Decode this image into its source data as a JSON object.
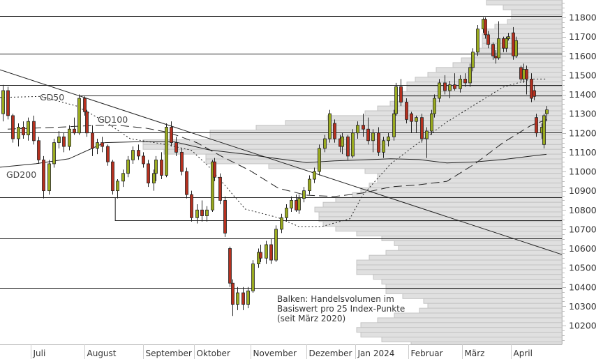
{
  "chart_data": {
    "type": "candlestick",
    "y_axis": {
      "position": "right",
      "range": [
        10100,
        11890
      ],
      "ticks": [
        10200,
        10300,
        10400,
        10500,
        10600,
        10700,
        10800,
        10900,
        11000,
        11100,
        11200,
        11300,
        11400,
        11500,
        11600,
        11700,
        11800
      ],
      "minor_step": 25
    },
    "x_axis": {
      "unit": "trading-day index",
      "range": [
        0,
        220
      ],
      "months": [
        {
          "label": "Juli",
          "day": 12
        },
        {
          "label": "August",
          "day": 33
        },
        {
          "label": "September",
          "day": 56
        },
        {
          "label": "Oktober",
          "day": 76
        },
        {
          "label": "November",
          "day": 98
        },
        {
          "label": "Dezember",
          "day": 120
        },
        {
          "label": "Jan 2024",
          "day": 139
        },
        {
          "label": "Februar",
          "day": 160
        },
        {
          "label": "März",
          "day": 181
        },
        {
          "label": "April",
          "day": 200
        }
      ]
    },
    "colors": {
      "up": "#9aab1f",
      "down": "#b5301f",
      "volume_fill": "#e0e0e0",
      "volume_stroke": "#c4c4c4",
      "line": "#222222"
    },
    "candles_fields": [
      "day",
      "open",
      "high",
      "low",
      "close"
    ],
    "candles": [
      [
        1,
        11300,
        11450,
        11260,
        11420
      ],
      [
        3,
        11420,
        11440,
        11270,
        11290
      ],
      [
        5,
        11290,
        11300,
        11150,
        11170
      ],
      [
        7,
        11170,
        11250,
        11130,
        11230
      ],
      [
        9,
        11230,
        11260,
        11170,
        11190
      ],
      [
        11,
        11190,
        11280,
        11160,
        11260
      ],
      [
        13,
        11260,
        11290,
        11140,
        11160
      ],
      [
        15,
        11160,
        11180,
        11040,
        11060
      ],
      [
        17,
        11060,
        11080,
        10860,
        10900
      ],
      [
        19,
        10900,
        11060,
        10880,
        11040
      ],
      [
        21,
        11040,
        11170,
        11020,
        11150
      ],
      [
        23,
        11150,
        11210,
        11120,
        11180
      ],
      [
        25,
        11180,
        11200,
        11100,
        11130
      ],
      [
        27,
        11130,
        11240,
        11110,
        11220
      ],
      [
        29,
        11220,
        11280,
        11190,
        11200
      ],
      [
        31,
        11200,
        11400,
        11190,
        11380
      ],
      [
        33,
        11380,
        11390,
        11290,
        11310
      ],
      [
        34,
        11310,
        11320,
        11180,
        11200
      ],
      [
        36,
        11200,
        11240,
        11080,
        11120
      ],
      [
        38,
        11120,
        11170,
        11090,
        11150
      ],
      [
        40,
        11150,
        11180,
        11100,
        11130
      ],
      [
        42,
        11130,
        11140,
        11030,
        11050
      ],
      [
        44,
        11050,
        11060,
        10880,
        10900
      ],
      [
        46,
        10900,
        10960,
        10860,
        10950
      ],
      [
        48,
        10950,
        11010,
        10920,
        10990
      ],
      [
        50,
        10990,
        11080,
        10970,
        11060
      ],
      [
        52,
        11060,
        11130,
        11040,
        11110
      ],
      [
        54,
        11110,
        11140,
        11060,
        11080
      ],
      [
        56,
        11080,
        11100,
        11020,
        11040
      ],
      [
        58,
        11040,
        11060,
        10920,
        10940
      ],
      [
        60,
        10940,
        11010,
        10900,
        10990
      ],
      [
        61,
        10990,
        11080,
        10950,
        11060
      ],
      [
        63,
        11060,
        11100,
        10960,
        10980
      ],
      [
        65,
        10980,
        11250,
        10970,
        11230
      ],
      [
        67,
        11230,
        11260,
        11130,
        11150
      ],
      [
        69,
        11150,
        11180,
        11080,
        11100
      ],
      [
        71,
        11100,
        11120,
        10980,
        11000
      ],
      [
        73,
        11000,
        11020,
        10860,
        10880
      ],
      [
        75,
        10880,
        10900,
        10740,
        10760
      ],
      [
        77,
        10760,
        10830,
        10730,
        10800
      ],
      [
        79,
        10800,
        10850,
        10740,
        10770
      ],
      [
        81,
        10770,
        10820,
        10740,
        10800
      ],
      [
        83,
        10800,
        11060,
        10790,
        11050
      ],
      [
        84,
        11050,
        11070,
        10950,
        10970
      ],
      [
        86,
        10970,
        10990,
        10830,
        10850
      ],
      [
        88,
        10850,
        10870,
        10660,
        10680
      ],
      [
        90,
        10600,
        10610,
        10400,
        10420
      ],
      [
        91,
        10420,
        10440,
        10250,
        10310
      ],
      [
        93,
        10310,
        10400,
        10280,
        10370
      ],
      [
        95,
        10370,
        10400,
        10280,
        10310
      ],
      [
        97,
        10310,
        10400,
        10290,
        10380
      ],
      [
        99,
        10380,
        10540,
        10370,
        10520
      ],
      [
        101,
        10520,
        10600,
        10500,
        10580
      ],
      [
        102,
        10580,
        10620,
        10530,
        10550
      ],
      [
        104,
        10550,
        10640,
        10520,
        10620
      ],
      [
        106,
        10620,
        10650,
        10520,
        10540
      ],
      [
        108,
        10540,
        10720,
        10530,
        10700
      ],
      [
        110,
        10700,
        10780,
        10680,
        10760
      ],
      [
        112,
        10760,
        10830,
        10740,
        10810
      ],
      [
        114,
        10810,
        10870,
        10790,
        10850
      ],
      [
        116,
        10850,
        10880,
        10790,
        10800
      ],
      [
        117,
        10800,
        10880,
        10780,
        10860
      ],
      [
        119,
        10860,
        10920,
        10840,
        10900
      ],
      [
        121,
        10900,
        10980,
        10880,
        10960
      ],
      [
        123,
        10960,
        11020,
        10940,
        11000
      ],
      [
        125,
        11000,
        11140,
        10980,
        11120
      ],
      [
        127,
        11120,
        11190,
        11100,
        11170
      ],
      [
        129,
        11170,
        11320,
        11150,
        11300
      ],
      [
        131,
        11250,
        11270,
        11150,
        11170
      ],
      [
        133,
        11170,
        11190,
        11100,
        11130
      ],
      [
        134,
        11130,
        11200,
        11090,
        11180
      ],
      [
        136,
        11180,
        11190,
        11060,
        11080
      ],
      [
        138,
        11080,
        11220,
        11070,
        11200
      ],
      [
        140,
        11200,
        11260,
        11170,
        11240
      ],
      [
        142,
        11240,
        11300,
        11180,
        11220
      ],
      [
        144,
        11220,
        11280,
        11140,
        11160
      ],
      [
        146,
        11160,
        11220,
        11100,
        11200
      ],
      [
        148,
        11200,
        11230,
        11080,
        11100
      ],
      [
        150,
        11100,
        11180,
        11070,
        11160
      ],
      [
        152,
        11160,
        11200,
        11130,
        11180
      ],
      [
        154,
        11180,
        11320,
        11160,
        11300
      ],
      [
        155,
        11300,
        11460,
        11290,
        11440
      ],
      [
        157,
        11440,
        11480,
        11340,
        11360
      ],
      [
        159,
        11360,
        11380,
        11250,
        11270
      ],
      [
        161,
        11300,
        11310,
        11200,
        11260
      ],
      [
        163,
        11260,
        11290,
        11200,
        11280
      ],
      [
        165,
        11280,
        11300,
        11150,
        11170
      ],
      [
        167,
        11170,
        11230,
        11070,
        11210
      ],
      [
        169,
        11210,
        11320,
        11190,
        11300
      ],
      [
        170,
        11300,
        11400,
        11280,
        11380
      ],
      [
        172,
        11380,
        11480,
        11360,
        11460
      ],
      [
        174,
        11460,
        11500,
        11400,
        11420
      ],
      [
        176,
        11420,
        11470,
        11380,
        11450
      ],
      [
        178,
        11450,
        11510,
        11420,
        11430
      ],
      [
        180,
        11430,
        11500,
        11410,
        11480
      ],
      [
        182,
        11480,
        11510,
        11440,
        11460
      ],
      [
        184,
        11460,
        11560,
        11440,
        11540
      ],
      [
        185,
        11540,
        11640,
        11520,
        11620
      ],
      [
        187,
        11620,
        11760,
        11600,
        11740
      ],
      [
        189,
        11740,
        11800,
        11720,
        11790
      ],
      [
        190,
        11790,
        11800,
        11690,
        11710
      ],
      [
        191,
        11710,
        11730,
        11640,
        11660
      ],
      [
        193,
        11660,
        11670,
        11580,
        11600
      ],
      [
        194,
        11600,
        11630,
        11560,
        11590
      ],
      [
        195,
        11590,
        11780,
        11580,
        11690
      ],
      [
        197,
        11690,
        11700,
        11620,
        11640
      ],
      [
        198,
        11640,
        11700,
        11620,
        11690
      ],
      [
        199,
        11690,
        11720,
        11680,
        11700
      ],
      [
        201,
        11720,
        11750,
        11580,
        11600
      ],
      [
        202,
        11600,
        11700,
        11590,
        11680
      ],
      [
        204,
        11540,
        11550,
        11470,
        11480
      ],
      [
        205,
        11480,
        11560,
        11460,
        11530
      ],
      [
        206,
        11530,
        11550,
        11400,
        11480
      ],
      [
        208,
        11480,
        11510,
        11360,
        11380
      ],
      [
        209,
        11420,
        11450,
        11370,
        11390
      ],
      [
        210,
        11280,
        11300,
        11180,
        11200
      ],
      [
        212,
        11200,
        11250,
        11170,
        11230
      ],
      [
        213,
        11140,
        11300,
        11120,
        11290
      ],
      [
        214,
        11300,
        11340,
        11260,
        11320
      ]
    ],
    "moving_averages": [
      {
        "name": "GD50",
        "style": "dotted",
        "points": [
          [
            0,
            11384
          ],
          [
            16,
            11390
          ],
          [
            30,
            11340
          ],
          [
            41,
            11260
          ],
          [
            51,
            11170
          ],
          [
            65,
            11140
          ],
          [
            75,
            11110
          ],
          [
            82,
            11022
          ],
          [
            96,
            10805
          ],
          [
            109,
            10760
          ],
          [
            117,
            10714
          ],
          [
            126,
            10714
          ],
          [
            137,
            10755
          ],
          [
            142,
            10877
          ],
          [
            153,
            11040
          ],
          [
            164,
            11150
          ],
          [
            175,
            11257
          ],
          [
            186,
            11348
          ],
          [
            197,
            11438
          ],
          [
            208,
            11480
          ],
          [
            214,
            11480
          ]
        ]
      },
      {
        "name": "GD100",
        "style": "dashed",
        "points": [
          [
            3,
            11220
          ],
          [
            23,
            11230
          ],
          [
            38,
            11240
          ],
          [
            46,
            11240
          ],
          [
            57,
            11225
          ],
          [
            66,
            11203
          ],
          [
            77,
            11150
          ],
          [
            87,
            11077
          ],
          [
            98,
            11004
          ],
          [
            109,
            10913
          ],
          [
            120,
            10877
          ],
          [
            131,
            10870
          ],
          [
            142,
            10888
          ],
          [
            153,
            10920
          ],
          [
            164,
            10931
          ],
          [
            175,
            10949
          ],
          [
            186,
            11040
          ],
          [
            197,
            11150
          ],
          [
            208,
            11240
          ],
          [
            214,
            11269
          ]
        ]
      },
      {
        "name": "GD200",
        "style": "solid",
        "points": [
          [
            0,
            11022
          ],
          [
            14,
            11040
          ],
          [
            27,
            11066
          ],
          [
            41,
            11150
          ],
          [
            55,
            11155
          ],
          [
            68,
            11155
          ],
          [
            82,
            11112
          ],
          [
            96,
            11090
          ],
          [
            109,
            11066
          ],
          [
            120,
            11046
          ],
          [
            131,
            11055
          ],
          [
            142,
            11060
          ],
          [
            153,
            11066
          ],
          [
            164,
            11062
          ],
          [
            175,
            11044
          ],
          [
            186,
            11050
          ],
          [
            197,
            11062
          ],
          [
            208,
            11080
          ],
          [
            214,
            11089
          ]
        ]
      }
    ],
    "ma_labels": [
      "GD50",
      "GD100",
      "GD200"
    ],
    "horizontal_lines": [
      {
        "price": 11807,
        "from_day": 0
      },
      {
        "price": 11612,
        "from_day": 0
      },
      {
        "price": 11449,
        "from_day": 0
      },
      {
        "price": 11395,
        "from_day": 31
      },
      {
        "price": 11203,
        "from_day": 0
      },
      {
        "price": 10866,
        "from_day": 0
      },
      {
        "price": 10747,
        "from_day": 45,
        "connector_from_price": 10866
      },
      {
        "price": 10652,
        "from_day": 0
      },
      {
        "price": 10395,
        "from_day": 0
      }
    ],
    "trendline": {
      "from": [
        0,
        11528
      ],
      "to": [
        220,
        10569
      ]
    },
    "volume_profile": {
      "bin_size": 25,
      "top_price": 11890,
      "unit": "relative volume (max = 100)",
      "values": [
        18,
        14,
        12,
        12,
        13,
        16,
        18,
        19,
        19,
        19,
        20,
        21,
        24,
        26,
        30,
        32,
        35,
        37,
        37,
        38,
        38,
        41,
        44,
        47,
        56,
        66,
        73,
        84,
        84,
        100,
        100,
        95,
        85,
        85,
        70,
        47,
        44,
        44,
        46,
        48,
        50,
        54,
        57,
        59,
        58,
        58,
        57,
        54,
        49,
        43,
        40,
        39,
        42,
        46,
        49,
        49,
        49,
        45,
        43,
        42,
        42,
        38,
        33,
        32,
        34,
        40,
        44,
        48,
        49,
        48,
        43,
        36
      ]
    },
    "annotation": [
      "Balken: Handelsvolumen im",
      "Basiswert pro 25 Index-Punkte",
      "(seit März 2020)"
    ]
  }
}
